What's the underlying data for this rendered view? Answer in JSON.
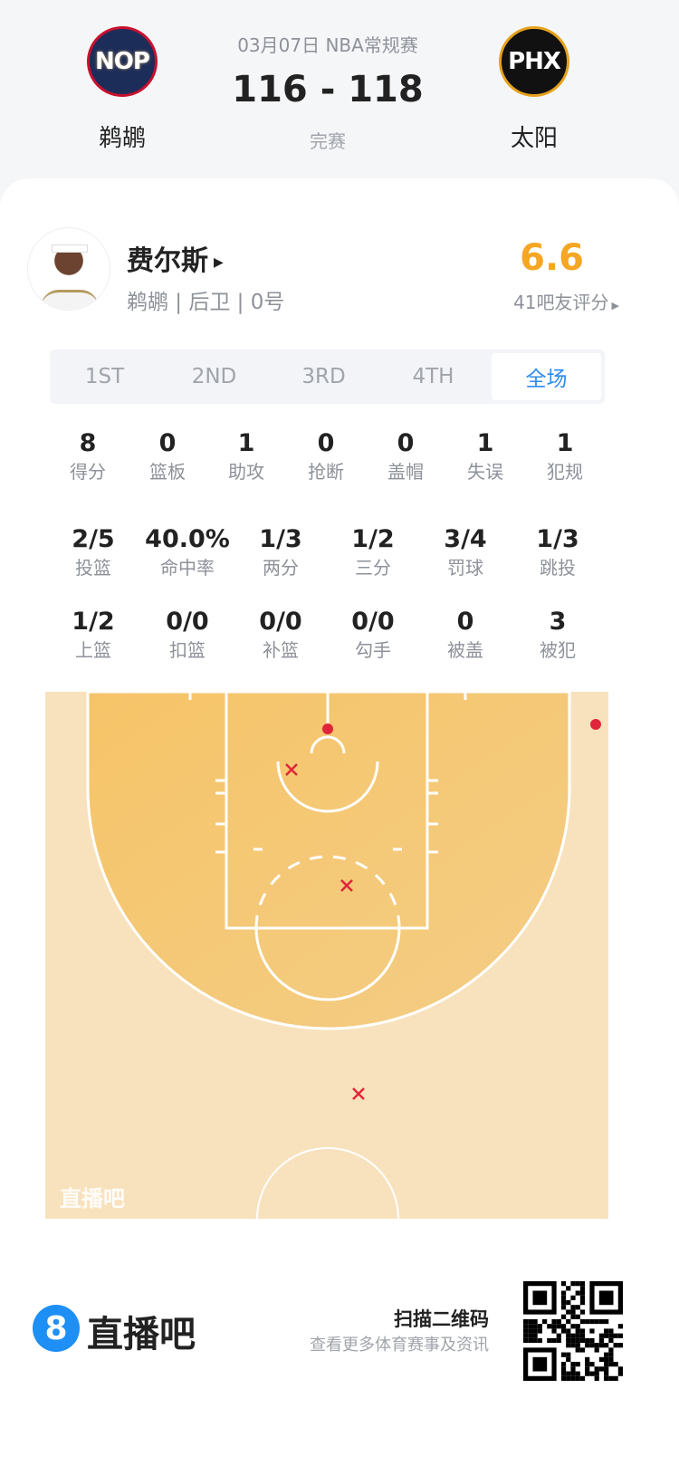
{
  "match": {
    "date_league": "03月07日 NBA常规赛",
    "score": "116 - 118",
    "status": "完赛",
    "home": {
      "abbr": "NOP",
      "name": "鹈鹕"
    },
    "away": {
      "abbr": "PHX",
      "name": "太阳"
    }
  },
  "player": {
    "name": "费尔斯",
    "info": "鹈鹕 | 后卫 | 0号",
    "rating": "6.6",
    "rating_label": "41吧友评分"
  },
  "tabs": [
    {
      "label": "1ST"
    },
    {
      "label": "2ND"
    },
    {
      "label": "3RD"
    },
    {
      "label": "4TH"
    },
    {
      "label": "全场",
      "active": true
    }
  ],
  "stats_row1": [
    {
      "v": "8",
      "l": "得分"
    },
    {
      "v": "0",
      "l": "篮板"
    },
    {
      "v": "1",
      "l": "助攻"
    },
    {
      "v": "0",
      "l": "抢断"
    },
    {
      "v": "0",
      "l": "盖帽"
    },
    {
      "v": "1",
      "l": "失误"
    },
    {
      "v": "1",
      "l": "犯规"
    }
  ],
  "stats_row2": [
    {
      "v": "2/5",
      "l": "投篮"
    },
    {
      "v": "40.0%",
      "l": "命中率"
    },
    {
      "v": "1/3",
      "l": "两分"
    },
    {
      "v": "1/2",
      "l": "三分"
    },
    {
      "v": "3/4",
      "l": "罚球"
    },
    {
      "v": "1/3",
      "l": "跳投"
    }
  ],
  "stats_row3": [
    {
      "v": "1/2",
      "l": "上篮"
    },
    {
      "v": "0/0",
      "l": "扣篮"
    },
    {
      "v": "0/0",
      "l": "补篮"
    },
    {
      "v": "0/0",
      "l": "勾手"
    },
    {
      "v": "0",
      "l": "被盖"
    },
    {
      "v": "3",
      "l": "被犯"
    }
  ],
  "court": {
    "watermark": "直播吧",
    "shots": [
      {
        "result": "made"
      },
      {
        "result": "made"
      },
      {
        "result": "missed"
      },
      {
        "result": "missed"
      },
      {
        "result": "missed"
      }
    ]
  },
  "footer": {
    "brand": "直播吧",
    "logo_digit": "8",
    "qr_title": "扫描二维码",
    "qr_sub": "查看更多体育赛事及资讯"
  },
  "colors": {
    "accent": "#2e8cf0",
    "rating": "#f5a623",
    "made": "#e0263a",
    "court_inner": "#f5c76e",
    "court_outer": "#f8e2bd"
  }
}
